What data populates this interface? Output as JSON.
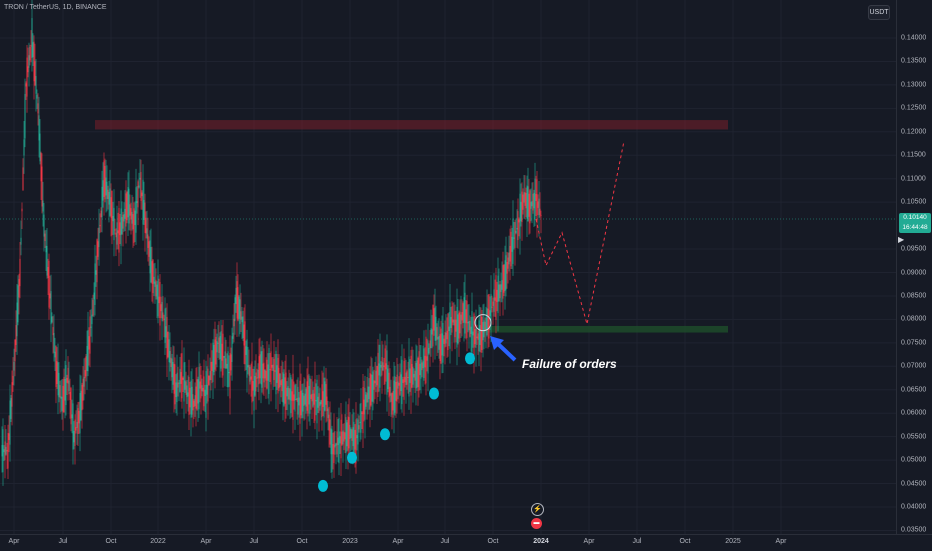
{
  "header": {
    "symbol": "TRON / TetherUS, 1D, BINANCE"
  },
  "currency": "USDT",
  "y_axis": {
    "ticks": [
      "0.14000",
      "0.13500",
      "0.13000",
      "0.12500",
      "0.12000",
      "0.11500",
      "0.11000",
      "0.10500",
      "0.09500",
      "0.09000",
      "0.08500",
      "0.08000",
      "0.07500",
      "0.07000",
      "0.06500",
      "0.06000",
      "0.05500",
      "0.05000",
      "0.04500",
      "0.04000",
      "0.03500"
    ]
  },
  "current_price": {
    "value": "0.10140",
    "countdown": "16:44:48",
    "color": "#22ab94"
  },
  "x_axis": {
    "ticks": [
      {
        "label": "Apr",
        "bold": false
      },
      {
        "label": "Jul",
        "bold": false
      },
      {
        "label": "Oct",
        "bold": false
      },
      {
        "label": "2022",
        "bold": false
      },
      {
        "label": "Apr",
        "bold": false
      },
      {
        "label": "Jul",
        "bold": false
      },
      {
        "label": "Oct",
        "bold": false
      },
      {
        "label": "2023",
        "bold": false
      },
      {
        "label": "Apr",
        "bold": false
      },
      {
        "label": "Jul",
        "bold": false
      },
      {
        "label": "Oct",
        "bold": false
      },
      {
        "label": "2024",
        "bold": true
      },
      {
        "label": "Apr",
        "bold": false
      },
      {
        "label": "Jul",
        "bold": false
      },
      {
        "label": "Oct",
        "bold": false
      },
      {
        "label": "2025",
        "bold": false
      },
      {
        "label": "Apr",
        "bold": false
      }
    ]
  },
  "annotation": {
    "text": "Failure of orders",
    "arrow_color": "#2962ff"
  },
  "zones": {
    "resistance": {
      "from": 0.1205,
      "to": 0.1225,
      "color": "#7a1f2a"
    },
    "support": {
      "from": 0.0772,
      "to": 0.0786,
      "color": "#1e4d2b"
    }
  },
  "markers_color": "#00bcd4",
  "colors": {
    "up": "#22ab94",
    "down": "#f23645",
    "projection": "#f23645",
    "background": "#161a25"
  }
}
